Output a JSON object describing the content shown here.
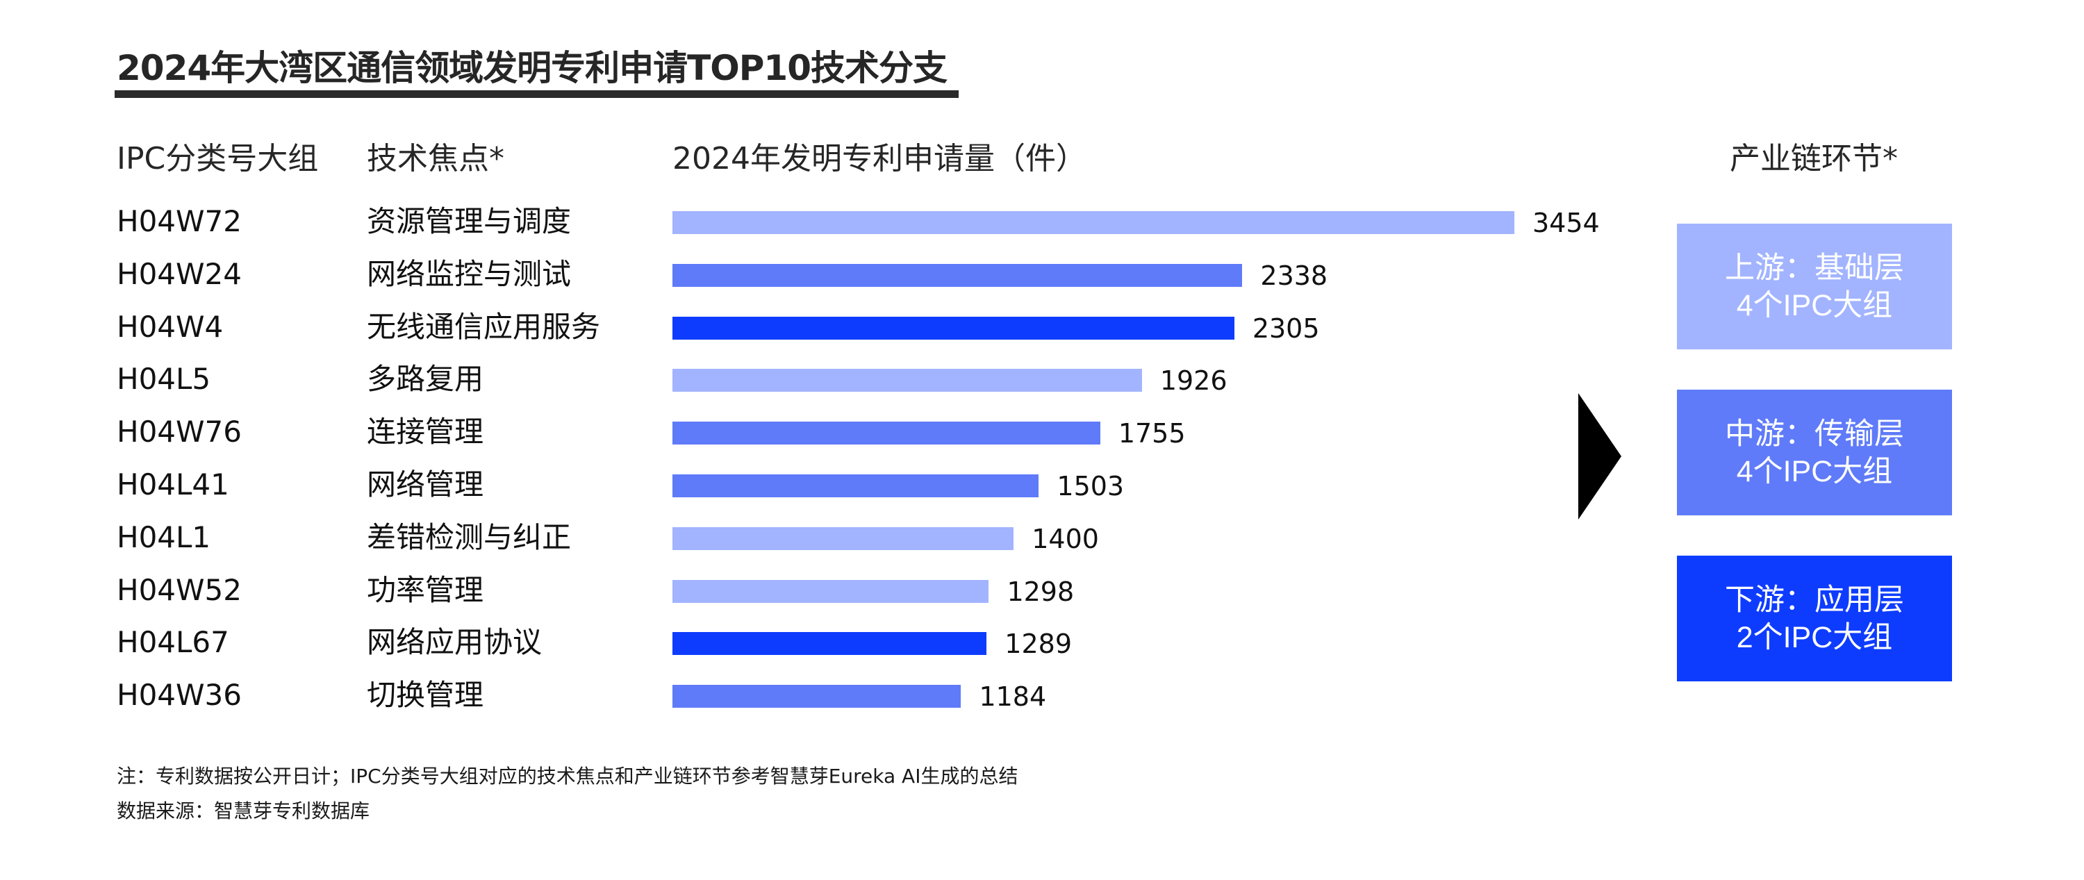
{
  "title": "2024年大湾区通信领域发明专利申请TOP10技术分支",
  "headers": {
    "ipc": "IPC分类号大组",
    "focus": "技术焦点*",
    "volume": "2024年发明专利申请量（件）",
    "chain": "产业链环节*"
  },
  "colors": {
    "upstream": "#A2B4FF",
    "midstream": "#5F7BF9",
    "downstream": "#0E3CFF"
  },
  "chart_data": {
    "type": "bar",
    "orientation": "horizontal",
    "title": "2024年大湾区通信领域发明专利申请TOP10技术分支",
    "xlabel": "2024年发明专利申请量（件）",
    "ylabel": "IPC分类号大组",
    "categories": [
      "H04W72",
      "H04W24",
      "H04W4",
      "H04L5",
      "H04W76",
      "H04L41",
      "H04L1",
      "H04W52",
      "H04L67",
      "H04W36"
    ],
    "focus": [
      "资源管理与调度",
      "网络监控与测试",
      "无线通信应用服务",
      "多路复用",
      "连接管理",
      "网络管理",
      "差错检测与纠正",
      "功率管理",
      "网络应用协议",
      "切换管理"
    ],
    "values": [
      3454,
      2338,
      2305,
      1926,
      1755,
      1503,
      1400,
      1298,
      1289,
      1184
    ],
    "chain_stage": [
      "upstream",
      "midstream",
      "downstream",
      "upstream",
      "midstream",
      "midstream",
      "upstream",
      "upstream",
      "downstream",
      "midstream"
    ],
    "xlim": [
      0,
      3454
    ],
    "grid": false,
    "legend": "right"
  },
  "chain_stages": [
    {
      "key": "upstream",
      "line1": "上游：基础层",
      "line2": "4个IPC大组"
    },
    {
      "key": "midstream",
      "line1": "中游：传输层",
      "line2": "4个IPC大组"
    },
    {
      "key": "downstream",
      "line1": "下游：应用层",
      "line2": "2个IPC大组"
    }
  ],
  "notes": {
    "note": "注：专利数据按公开日计；IPC分类号大组对应的技术焦点和产业链环节参考智慧芽Eureka AI生成的总结",
    "source": "数据来源：智慧芽专利数据库"
  }
}
